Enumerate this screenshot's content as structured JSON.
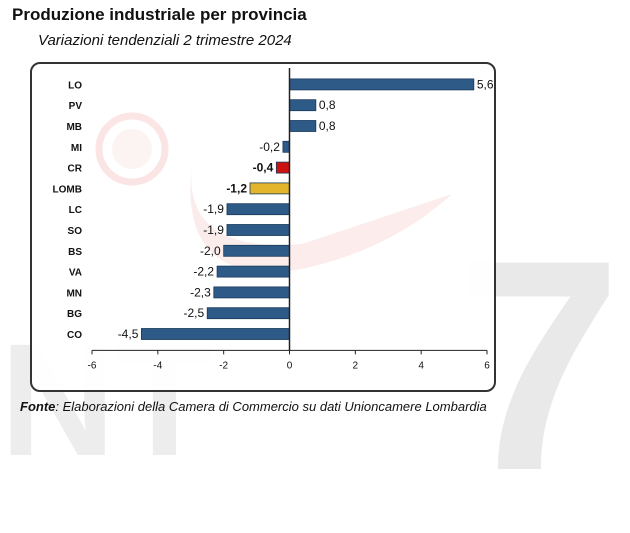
{
  "header": {
    "title": "Produzione industriale per provincia",
    "subtitle": "Variazioni tendenziali 2 trimestre 2024"
  },
  "footer": {
    "source_label": "Fonte",
    "source_text": ": Elaborazioni della Camera di Commercio su dati Unioncamere Lombardia"
  },
  "colors": {
    "bar": "#2e5a88",
    "bar_dark": "#1b3a5c",
    "highlight_cr": "#cc1111",
    "highlight_lomb": "#e3b52a",
    "axis": "#222222"
  },
  "chart_data": {
    "type": "bar",
    "orientation": "horizontal",
    "categories": [
      "LO",
      "PV",
      "MB",
      "MI",
      "CR",
      "LOMB",
      "LC",
      "SO",
      "BS",
      "VA",
      "MN",
      "BG",
      "CO"
    ],
    "values": [
      5.6,
      0.8,
      0.8,
      -0.2,
      -0.4,
      -1.2,
      -1.9,
      -1.9,
      -2.0,
      -2.2,
      -2.3,
      -2.5,
      -4.5
    ],
    "value_labels": [
      "5,6",
      "0,8",
      "0,8",
      "-0,2",
      "-0,4",
      "-1,2",
      "-1,9",
      "-1,9",
      "-2,0",
      "-2,2",
      "-2,3",
      "-2,5",
      "-4,5"
    ],
    "bold_labels": [
      "CR",
      "LOMB"
    ],
    "xlim": [
      -6,
      6
    ],
    "xticks": [
      -6,
      -4,
      -2,
      0,
      2,
      4,
      6
    ],
    "grid": false,
    "legend": "none"
  }
}
